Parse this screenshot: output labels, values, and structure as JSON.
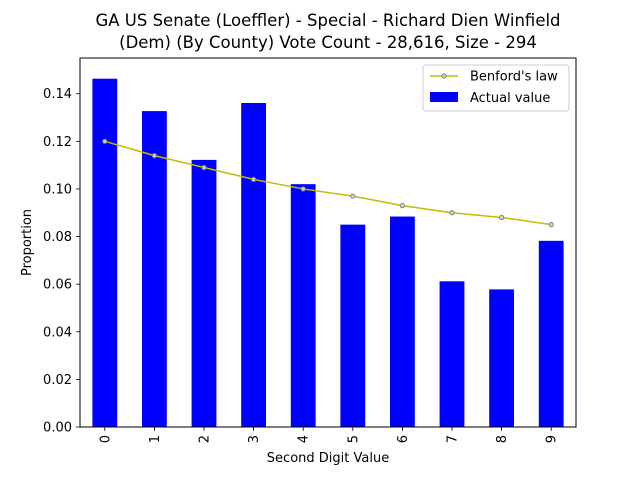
{
  "chart_data": {
    "type": "bar",
    "title_line1": "GA US Senate (Loeffler) - Special - Richard Dien Winfield",
    "title_line2": "(Dem) (By County) Vote Count - 28,616, Size - 294",
    "xlabel": "Second Digit Value",
    "ylabel": "Proportion",
    "categories": [
      "0",
      "1",
      "2",
      "3",
      "4",
      "5",
      "6",
      "7",
      "8",
      "9"
    ],
    "series": [
      {
        "name": "Actual value",
        "kind": "bar",
        "color": "#0000ff",
        "values": [
          0.1463,
          0.1327,
          0.1122,
          0.1361,
          0.102,
          0.085,
          0.0884,
          0.0612,
          0.0578,
          0.0782
        ]
      },
      {
        "name": "Benford's law",
        "kind": "line",
        "color": "#bfbf00",
        "values": [
          0.12,
          0.114,
          0.109,
          0.104,
          0.1,
          0.097,
          0.093,
          0.09,
          0.088,
          0.085
        ]
      }
    ],
    "ylim": [
      0,
      0.155
    ],
    "yticks": [
      "0.00",
      "0.02",
      "0.04",
      "0.06",
      "0.08",
      "0.10",
      "0.12",
      "0.14"
    ],
    "legend_position": "top-right",
    "grid": false
  }
}
